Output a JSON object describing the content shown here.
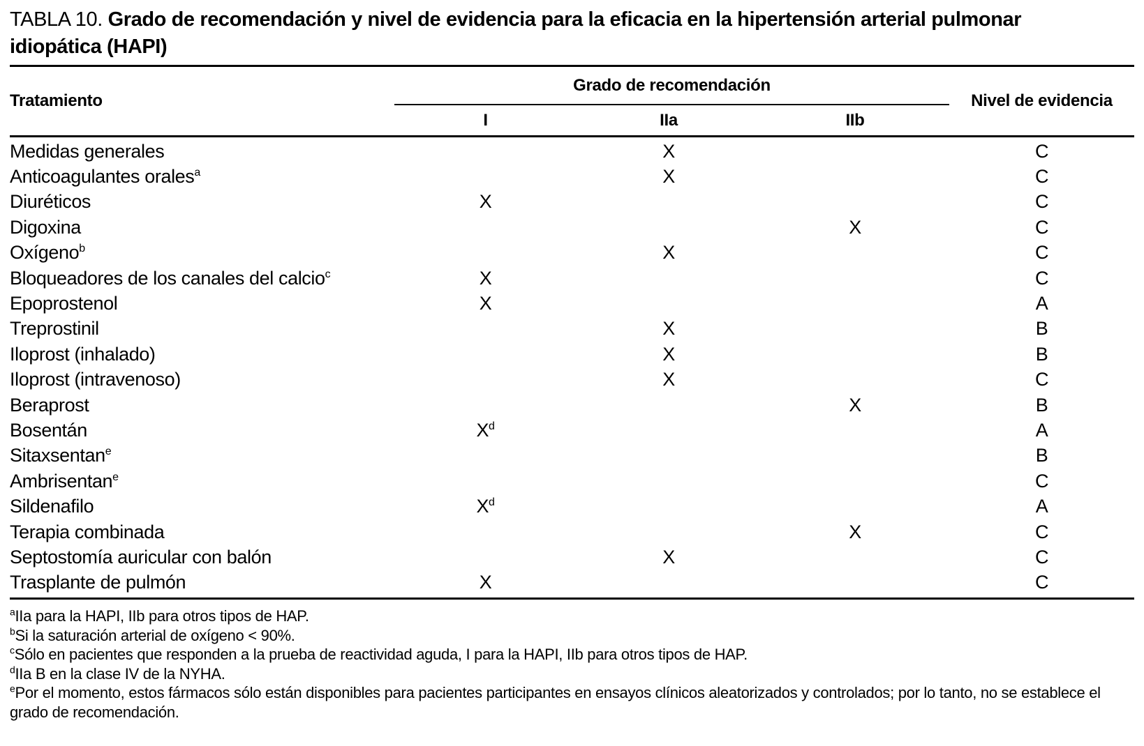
{
  "page": {
    "background": "#ffffff",
    "text_color": "#000000"
  },
  "title": {
    "label": "TABLA 10.",
    "line1": "Grado de recomendación y nivel de evidencia para la eficacia en la hipertensión arterial pulmonar",
    "line2": "idiopática (HAPI)"
  },
  "table": {
    "columns": {
      "treatment": "Tratamiento",
      "grade_group": "Grado de recomendación",
      "grade_I": "I",
      "grade_IIa": "IIa",
      "grade_IIb": "IIb",
      "evidence": "Nivel de evidencia"
    },
    "rows": [
      {
        "treatment": "Medidas generales",
        "sup": "",
        "I": "",
        "IIa": "X",
        "IIb": "",
        "x_sup": "",
        "evidence": "C"
      },
      {
        "treatment": "Anticoagulantes orales",
        "sup": "a",
        "I": "",
        "IIa": "X",
        "IIb": "",
        "x_sup": "",
        "evidence": "C"
      },
      {
        "treatment": "Diuréticos",
        "sup": "",
        "I": "X",
        "IIa": "",
        "IIb": "",
        "x_sup": "",
        "evidence": "C"
      },
      {
        "treatment": "Digoxina",
        "sup": "",
        "I": "",
        "IIa": "",
        "IIb": "X",
        "x_sup": "",
        "evidence": "C"
      },
      {
        "treatment": "Oxígeno",
        "sup": "b",
        "I": "",
        "IIa": "X",
        "IIb": "",
        "x_sup": "",
        "evidence": "C"
      },
      {
        "treatment": "Bloqueadores de los canales del calcio",
        "sup": "c",
        "I": "X",
        "IIa": "",
        "IIb": "",
        "x_sup": "",
        "evidence": "C"
      },
      {
        "treatment": "Epoprostenol",
        "sup": "",
        "I": "X",
        "IIa": "",
        "IIb": "",
        "x_sup": "",
        "evidence": "A"
      },
      {
        "treatment": "Treprostinil",
        "sup": "",
        "I": "",
        "IIa": "X",
        "IIb": "",
        "x_sup": "",
        "evidence": "B"
      },
      {
        "treatment": "Iloprost (inhalado)",
        "sup": "",
        "I": "",
        "IIa": "X",
        "IIb": "",
        "x_sup": "",
        "evidence": "B"
      },
      {
        "treatment": "Iloprost (intravenoso)",
        "sup": "",
        "I": "",
        "IIa": "X",
        "IIb": "",
        "x_sup": "",
        "evidence": "C"
      },
      {
        "treatment": "Beraprost",
        "sup": "",
        "I": "",
        "IIa": "",
        "IIb": "X",
        "x_sup": "",
        "evidence": "B"
      },
      {
        "treatment": "Bosentán",
        "sup": "",
        "I": "X",
        "IIa": "",
        "IIb": "",
        "x_sup": "d",
        "evidence": "A"
      },
      {
        "treatment": "Sitaxsentan",
        "sup": "e",
        "I": "",
        "IIa": "",
        "IIb": "",
        "x_sup": "",
        "evidence": "B"
      },
      {
        "treatment": "Ambrisentan",
        "sup": "e",
        "I": "",
        "IIa": "",
        "IIb": "",
        "x_sup": "",
        "evidence": "C"
      },
      {
        "treatment": "Sildenafilo",
        "sup": "",
        "I": "X",
        "IIa": "",
        "IIb": "",
        "x_sup": "d",
        "evidence": "A"
      },
      {
        "treatment": "Terapia combinada",
        "sup": "",
        "I": "",
        "IIa": "",
        "IIb": "X",
        "x_sup": "",
        "evidence": "C"
      },
      {
        "treatment": "Septostomía auricular con balón",
        "sup": "",
        "I": "",
        "IIa": "X",
        "IIb": "",
        "x_sup": "",
        "evidence": "C"
      },
      {
        "treatment": "Trasplante de pulmón",
        "sup": "",
        "I": "X",
        "IIa": "",
        "IIb": "",
        "x_sup": "",
        "evidence": "C"
      }
    ]
  },
  "footnotes": [
    {
      "sup": "a",
      "text": "IIa para la HAPI, IIb para otros tipos de HAP."
    },
    {
      "sup": "b",
      "text": "Si la saturación arterial de oxígeno < 90%."
    },
    {
      "sup": "c",
      "text": "Sólo en pacientes que responden a la prueba de reactividad aguda, I para la HAPI, IIb para otros tipos de HAP."
    },
    {
      "sup": "d",
      "text": "IIa B en la clase IV de la NYHA."
    },
    {
      "sup": "e",
      "text": "Por el momento, estos fármacos sólo están disponibles para pacientes participantes en ensayos clínicos aleatorizados y controlados; por lo tanto, no se establece el grado de recomendación."
    }
  ]
}
